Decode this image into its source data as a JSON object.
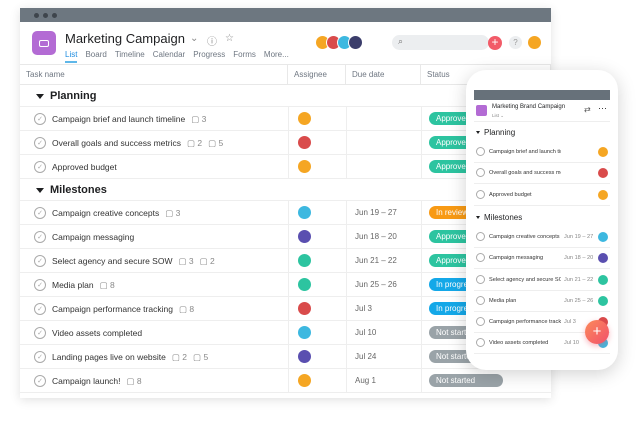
{
  "project": {
    "title": "Marketing Campaign",
    "tabs": [
      "List",
      "Board",
      "Timeline",
      "Calendar",
      "Progress",
      "Forms",
      "More..."
    ]
  },
  "columns": [
    "Task name",
    "Assignee",
    "Due date",
    "Status"
  ],
  "colors": {
    "approved": "#2dc4a0",
    "in_review": "#f89a14",
    "in_progress": "#14a8e8",
    "not_started": "#9aa3a8",
    "brand": "#b36bd4",
    "fab": "#f2506b"
  },
  "sections": [
    {
      "name": "Planning",
      "tasks": [
        {
          "name": "Campaign brief and launch timeline",
          "likes": "3",
          "assignee_color": "#f5a623",
          "status": "Approved",
          "status_key": "approved"
        },
        {
          "name": "Overall goals and success metrics",
          "comments": "2",
          "subtasks": "5",
          "assignee_color": "#d94b4b",
          "status": "Approved",
          "status_key": "approved"
        },
        {
          "name": "Approved budget",
          "assignee_color": "#f5a623",
          "status": "Approved",
          "status_key": "approved"
        }
      ]
    },
    {
      "name": "Milestones",
      "tasks": [
        {
          "name": "Campaign creative concepts",
          "subtasks": "3",
          "assignee_color": "#3db8e0",
          "due": "Jun 19 – 27",
          "status": "In review",
          "status_key": "in_review"
        },
        {
          "name": "Campaign messaging",
          "assignee_color": "#5a4fb0",
          "due": "Jun 18 – 20",
          "status": "Approved",
          "status_key": "approved"
        },
        {
          "name": "Select agency and secure SOW",
          "likes": "3",
          "comments": "2",
          "assignee_color": "#2dc4a0",
          "due": "Jun 21 – 22",
          "status": "Approved",
          "status_key": "approved"
        },
        {
          "name": "Media plan",
          "likes": "8",
          "assignee_color": "#2dc4a0",
          "due": "Jun 25 – 26",
          "status": "In progress",
          "status_key": "in_progress"
        },
        {
          "name": "Campaign performance tracking",
          "likes": "8",
          "assignee_color": "#d94b4b",
          "due": "Jul 3",
          "status": "In progress",
          "status_key": "in_progress"
        },
        {
          "name": "Video assets completed",
          "assignee_color": "#3db8e0",
          "due": "Jul 10",
          "status": "Not started",
          "status_key": "not_started"
        },
        {
          "name": "Landing pages live on website",
          "comments": "2",
          "subtasks": "5",
          "assignee_color": "#5a4fb0",
          "due": "Jul 24",
          "status": "Not started",
          "status_key": "not_started"
        },
        {
          "name": "Campaign launch!",
          "likes": "8",
          "assignee_color": "#f5a623",
          "due": "Aug 1",
          "status": "Not started",
          "status_key": "not_started"
        }
      ]
    }
  ],
  "mobile": {
    "title": "Marketing Brand Campaign",
    "view": "List ⌄",
    "sections": [
      {
        "name": "Planning",
        "tasks": [
          {
            "name": "Campaign brief and launch timeline",
            "due": "",
            "c": "#f5a623"
          },
          {
            "name": "Overall goals and success metrics",
            "due": "",
            "c": "#d94b4b"
          },
          {
            "name": "Approved budget",
            "due": "",
            "c": "#f5a623"
          }
        ]
      },
      {
        "name": "Milestones",
        "tasks": [
          {
            "name": "Campaign creative concepts",
            "due": "Jun 19 – 27",
            "c": "#3db8e0"
          },
          {
            "name": "Campaign messaging",
            "due": "Jun 18 – 20",
            "c": "#5a4fb0"
          },
          {
            "name": "Select agency and secure SOW",
            "due": "Jun 21 – 22",
            "c": "#2dc4a0"
          },
          {
            "name": "Media plan",
            "due": "Jun 25 – 26",
            "c": "#2dc4a0"
          },
          {
            "name": "Campaign performance tracking",
            "due": "Jul 3",
            "c": "#d94b4b"
          },
          {
            "name": "Video assets completed",
            "due": "Jul 10",
            "c": "#3db8e0"
          }
        ]
      }
    ]
  }
}
